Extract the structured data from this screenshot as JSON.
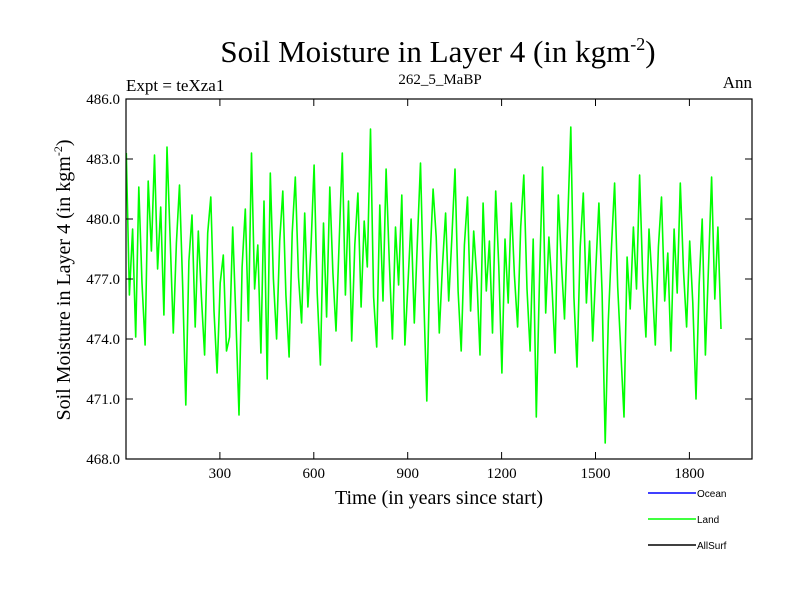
{
  "chart_data": {
    "type": "line",
    "title": "Soil Moisture in Layer 4 (in kgm",
    "title_sup": "-2",
    "title_close": ")",
    "subtitle_left": "Expt = teXza1",
    "subtitle_center": "262_5_MaBP",
    "subtitle_right": "Ann",
    "xlabel": "Time (in years since start)",
    "ylabel": "Soil Moisture in Layer 4 (in kgm",
    "ylabel_sup": "-2",
    "ylabel_close": ")",
    "xlim": [
      0,
      2000
    ],
    "ylim": [
      468,
      486
    ],
    "x_ticks": [
      300,
      600,
      900,
      1200,
      1500,
      1800
    ],
    "x_tick_labels": [
      "300",
      "600",
      "900",
      "1200",
      "1500",
      "1800"
    ],
    "y_ticks": [
      468,
      471,
      474,
      477,
      480,
      483,
      486
    ],
    "y_tick_labels": [
      "468.0",
      "471.0",
      "474.0",
      "477.0",
      "480.0",
      "483.0",
      "486.0"
    ],
    "legend": [
      {
        "name": "Ocean",
        "color": "#0000ff"
      },
      {
        "name": "Land",
        "color": "#00ff00"
      },
      {
        "name": "AllSurf",
        "color": "#000000"
      }
    ],
    "series": [
      {
        "name": "Land",
        "color": "#00ff00",
        "x_start": 1,
        "x_step": 10,
        "values": [
          483.3,
          476.2,
          479.5,
          474.1,
          481.6,
          476.8,
          473.7,
          481.9,
          478.4,
          483.2,
          477.5,
          480.6,
          475.2,
          483.6,
          479.1,
          474.3,
          478.8,
          481.7,
          476.6,
          470.7,
          477.9,
          480.2,
          474.6,
          479.4,
          476.1,
          473.2,
          479.3,
          481.1,
          475.4,
          472.3,
          476.8,
          478.2,
          473.4,
          474.1,
          479.6,
          475.0,
          470.2,
          477.6,
          480.5,
          474.9,
          483.3,
          476.5,
          478.7,
          473.3,
          480.9,
          472.0,
          482.3,
          477.0,
          474.0,
          478.9,
          481.4,
          476.2,
          473.1,
          479.3,
          482.1,
          477.1,
          474.8,
          480.3,
          475.6,
          478.6,
          482.7,
          476.3,
          472.7,
          479.8,
          475.1,
          481.6,
          477.3,
          474.4,
          478.9,
          483.3,
          476.2,
          480.9,
          473.9,
          478.7,
          481.3,
          475.6,
          479.9,
          477.6,
          484.5,
          476.1,
          473.6,
          480.7,
          475.9,
          482.5,
          478.0,
          474.0,
          479.6,
          476.7,
          481.2,
          473.7,
          476.8,
          480.0,
          474.8,
          478.9,
          482.8,
          476.2,
          470.9,
          477.8,
          481.5,
          479.1,
          474.3,
          477.6,
          480.3,
          475.9,
          479.0,
          482.5,
          476.4,
          473.4,
          478.7,
          481.1,
          475.4,
          479.4,
          477.0,
          473.2,
          480.8,
          476.4,
          478.9,
          474.3,
          481.4,
          477.6,
          472.3,
          479.0,
          475.8,
          480.8,
          477.2,
          474.6,
          479.6,
          482.2,
          476.5,
          473.4,
          479.0,
          470.1,
          477.0,
          482.6,
          475.3,
          479.1,
          476.6,
          473.3,
          481.2,
          477.8,
          475.0,
          479.7,
          484.6,
          476.1,
          472.6,
          478.6,
          481.3,
          475.8,
          478.9,
          473.9,
          477.5,
          480.8,
          476.3,
          468.8,
          474.9,
          478.6,
          481.8,
          476.6,
          473.3,
          470.1,
          478.1,
          475.5,
          479.6,
          476.5,
          482.2,
          477.0,
          474.1,
          479.5,
          476.8,
          473.7,
          478.6,
          481.1,
          475.9,
          478.3,
          473.4,
          479.5,
          476.3,
          481.8,
          477.4,
          474.6,
          478.9,
          475.8,
          471.0,
          476.7,
          480.0,
          473.2,
          477.6,
          482.1,
          476.0,
          479.6,
          474.5
        ]
      }
    ]
  }
}
